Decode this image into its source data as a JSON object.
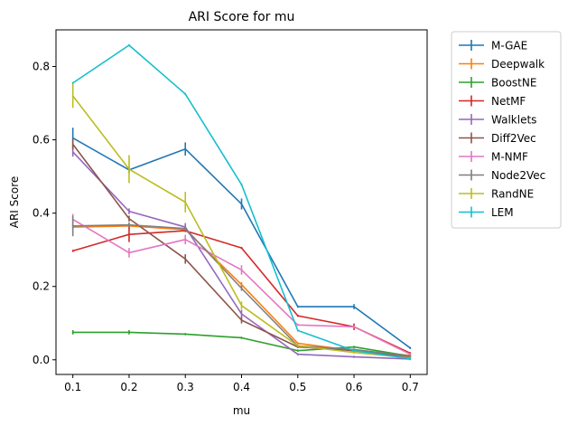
{
  "chart_data": {
    "type": "line",
    "title": "ARI Score for mu",
    "xlabel": "mu",
    "ylabel": "ARI Score",
    "xlim": [
      0.07,
      0.73
    ],
    "ylim": [
      -0.04,
      0.9
    ],
    "x_ticks": [
      "0.1",
      "0.2",
      "0.3",
      "0.4",
      "0.5",
      "0.6",
      "0.7"
    ],
    "y_ticks": [
      "0.0",
      "0.2",
      "0.4",
      "0.6",
      "0.8"
    ],
    "grid": false,
    "legend_position": "outside-right",
    "x": [
      0.1,
      0.2,
      0.3,
      0.4,
      0.5,
      0.6,
      0.7
    ],
    "series": [
      {
        "name": "M-GAE",
        "color": "#1f77b4",
        "values": [
          0.605,
          0.518,
          0.575,
          0.425,
          0.145,
          0.145,
          0.032
        ],
        "errors": [
          0.025,
          0.005,
          0.015,
          0.012,
          0.0,
          0.004,
          0.0
        ]
      },
      {
        "name": "Deepwalk",
        "color": "#ff7f0e",
        "values": [
          0.362,
          0.365,
          0.355,
          0.205,
          0.045,
          0.025,
          0.012
        ],
        "errors": [
          0.004,
          0.004,
          0.004,
          0.004,
          0.0,
          0.0,
          0.0
        ]
      },
      {
        "name": "BoostNE",
        "color": "#2ca02c",
        "values": [
          0.075,
          0.075,
          0.07,
          0.06,
          0.025,
          0.035,
          0.01
        ],
        "errors": [
          0.003,
          0.003,
          0.0,
          0.0,
          0.0,
          0.0,
          0.0
        ]
      },
      {
        "name": "NetMF",
        "color": "#d62728",
        "values": [
          0.297,
          0.342,
          0.352,
          0.305,
          0.12,
          0.09,
          0.018
        ],
        "errors": [
          0.0,
          0.018,
          0.0,
          0.0,
          0.0,
          0.006,
          0.0
        ]
      },
      {
        "name": "Walklets",
        "color": "#9467bd",
        "values": [
          0.567,
          0.405,
          0.362,
          0.125,
          0.015,
          0.008,
          0.002
        ],
        "errors": [
          0.01,
          0.005,
          0.008,
          0.008,
          0.0,
          0.0,
          0.0
        ]
      },
      {
        "name": "Diff2Vec",
        "color": "#8c564b",
        "values": [
          0.588,
          0.385,
          0.275,
          0.108,
          0.035,
          0.025,
          0.008
        ],
        "errors": [
          0.012,
          0.005,
          0.01,
          0.006,
          0.0,
          0.0,
          0.0
        ]
      },
      {
        "name": "M-NMF",
        "color": "#e377c2",
        "values": [
          0.383,
          0.292,
          0.328,
          0.245,
          0.095,
          0.09,
          0.015
        ],
        "errors": [
          0.012,
          0.01,
          0.01,
          0.01,
          0.0,
          0.0,
          0.0
        ]
      },
      {
        "name": "Node2Vec",
        "color": "#7f7f7f",
        "values": [
          0.365,
          0.368,
          0.358,
          0.195,
          0.038,
          0.028,
          0.01
        ],
        "errors": [
          0.025,
          0.004,
          0.004,
          0.004,
          0.0,
          0.0,
          0.0
        ]
      },
      {
        "name": "RandNE",
        "color": "#bcbd22",
        "values": [
          0.72,
          0.52,
          0.43,
          0.148,
          0.038,
          0.02,
          0.005
        ],
        "errors": [
          0.03,
          0.035,
          0.025,
          0.008,
          0.0,
          0.0,
          0.0
        ]
      },
      {
        "name": "LEM",
        "color": "#17becf",
        "values": [
          0.755,
          0.858,
          0.725,
          0.478,
          0.08,
          0.025,
          0.003
        ],
        "errors": [
          0.0,
          0.0,
          0.0,
          0.0,
          0.0,
          0.0,
          0.0
        ]
      }
    ]
  }
}
